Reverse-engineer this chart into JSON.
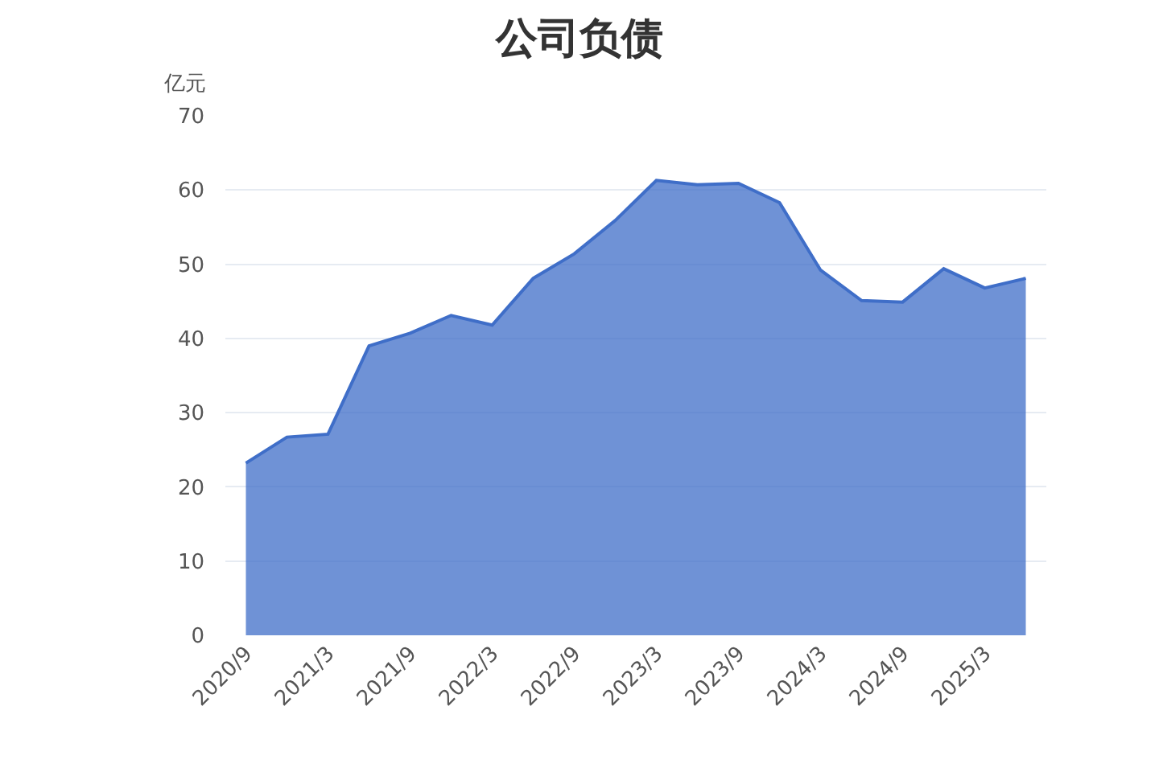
{
  "chart_data": {
    "type": "area",
    "title": "公司负债",
    "ylabel": "亿元",
    "categories": [
      "2020/9",
      null,
      "2021/3",
      null,
      "2021/9",
      null,
      "2022/3",
      null,
      "2022/9",
      null,
      "2023/3",
      null,
      "2023/9",
      null,
      "2024/3",
      null,
      "2024/9",
      null,
      "2025/3",
      null
    ],
    "series": [
      {
        "color": "#3f6ec8",
        "values": [
          23.2,
          26.7,
          27.1,
          39.0,
          40.7,
          43.1,
          41.8,
          48.1,
          51.4,
          55.9,
          61.3,
          60.7,
          60.9,
          58.3,
          49.2,
          45.1,
          44.9,
          49.4,
          46.8,
          48.1
        ]
      }
    ],
    "ylim": [
      0,
      70
    ],
    "yticks": [
      0,
      10,
      20,
      30,
      40,
      50,
      60,
      70
    ],
    "grid": "y"
  }
}
